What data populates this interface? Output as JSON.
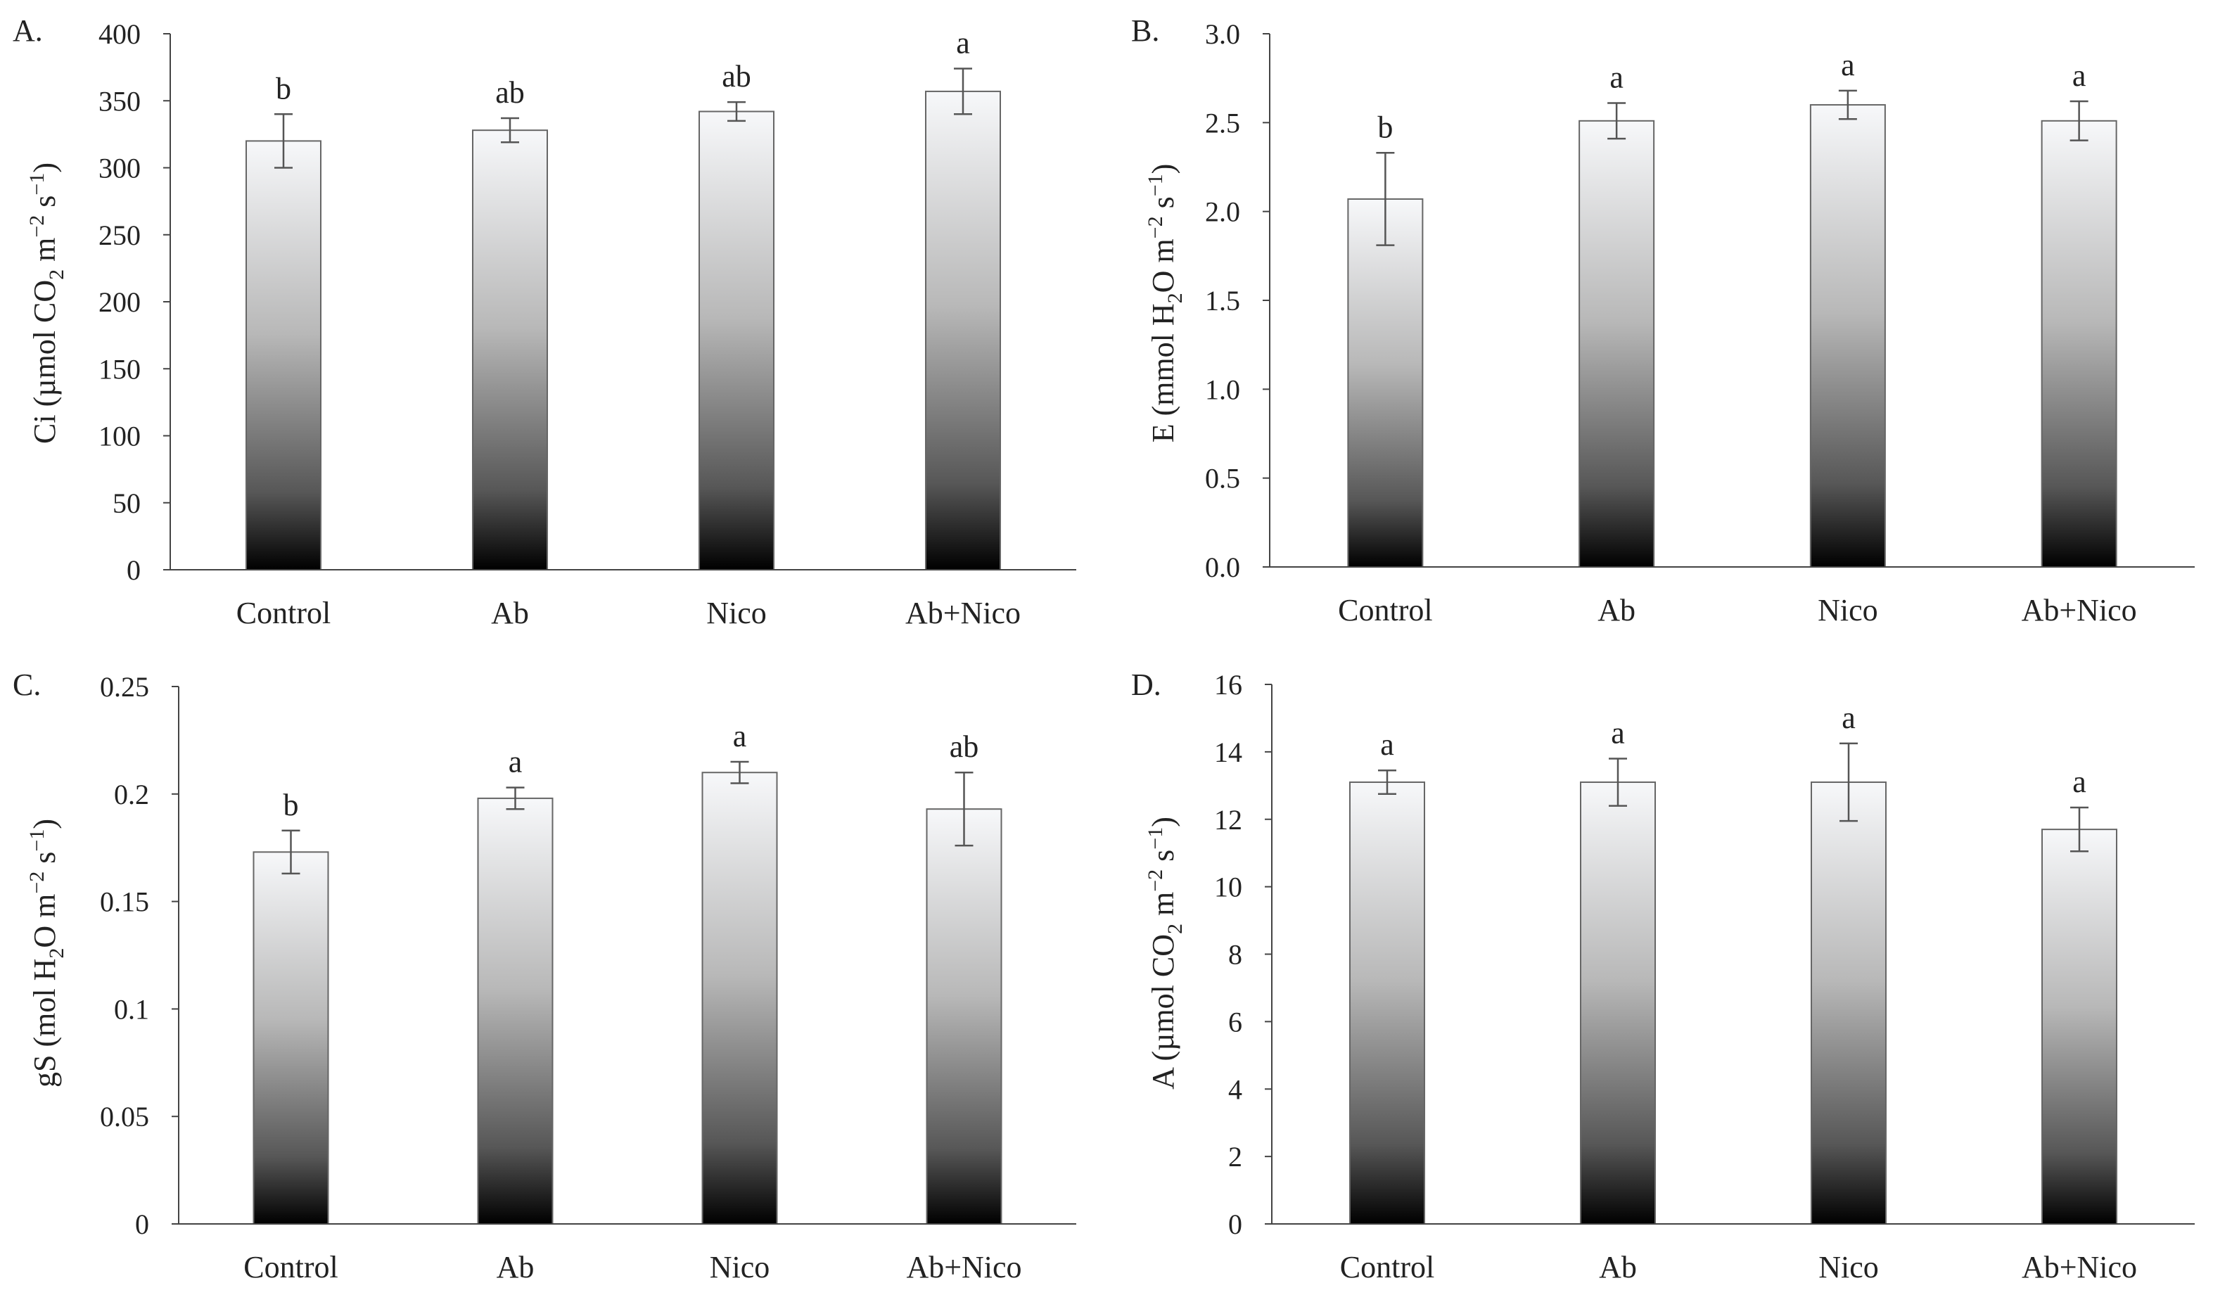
{
  "figure": {
    "description": "",
    "panels_count": 4
  },
  "chart_data": [
    {
      "panel_label": "A.",
      "type": "bar",
      "categories": [
        "Control",
        "Ab",
        "Nico",
        "Ab+Nico"
      ],
      "values": [
        320,
        328,
        342,
        357
      ],
      "errors": [
        20,
        9,
        7,
        17
      ],
      "significance": [
        "b",
        "ab",
        "ab",
        "a"
      ],
      "ylabel": {
        "main": "Ci (µmol CO",
        "sub": "2",
        "mid": " m",
        "sup1": "−2",
        "mid2": " s",
        "sup2": "−1",
        "end": ")"
      },
      "ylim": [
        0,
        400
      ],
      "yticks": [
        "0",
        "50",
        "100",
        "150",
        "200",
        "250",
        "300",
        "350",
        "400"
      ],
      "ytick_values": [
        0,
        50,
        100,
        150,
        200,
        250,
        300,
        350,
        400
      ]
    },
    {
      "panel_label": "B.",
      "type": "bar",
      "categories": [
        "Control",
        "Ab",
        "Nico",
        "Ab+Nico"
      ],
      "values": [
        2.07,
        2.51,
        2.6,
        2.51
      ],
      "errors": [
        0.26,
        0.1,
        0.08,
        0.11
      ],
      "significance": [
        "b",
        "a",
        "a",
        "a"
      ],
      "ylabel": {
        "main": "E (mmol H",
        "sub": "2",
        "mid": "O m",
        "sup1": "−2",
        "mid2": " s",
        "sup2": "−1",
        "end": ")"
      },
      "ylim": [
        0,
        3.0
      ],
      "yticks": [
        "0.0",
        "0.5",
        "1.0",
        "1.5",
        "2.0",
        "2.5",
        "3.0"
      ],
      "ytick_values": [
        0,
        0.5,
        1.0,
        1.5,
        2.0,
        2.5,
        3.0
      ]
    },
    {
      "panel_label": "C.",
      "type": "bar",
      "categories": [
        "Control",
        "Ab",
        "Nico",
        "Ab+Nico"
      ],
      "values": [
        0.173,
        0.198,
        0.21,
        0.193
      ],
      "errors": [
        0.01,
        0.005,
        0.005,
        0.017
      ],
      "significance": [
        "b",
        "a",
        "a",
        "ab"
      ],
      "ylabel": {
        "main": "gS (mol H",
        "sub": "2",
        "mid": "O m",
        "sup1": "−2",
        "mid2": " s",
        "sup2": "−1",
        "end": ")"
      },
      "ylim": [
        0,
        0.25
      ],
      "yticks": [
        "0",
        "0.05",
        "0.1",
        "0.15",
        "0.2",
        "0.25"
      ],
      "ytick_values": [
        0,
        0.05,
        0.1,
        0.15,
        0.2,
        0.25
      ]
    },
    {
      "panel_label": "D.",
      "type": "bar",
      "categories": [
        "Control",
        "Ab",
        "Nico",
        "Ab+Nico"
      ],
      "values": [
        13.1,
        13.1,
        13.1,
        11.7
      ],
      "errors": [
        0.35,
        0.7,
        1.15,
        0.65
      ],
      "significance": [
        "a",
        "a",
        "a",
        "a"
      ],
      "ylabel": {
        "main": "A (µmol CO",
        "sub": "2",
        "mid": " m",
        "sup1": "−2",
        "mid2": " s",
        "sup2": "−1",
        "end": ")"
      },
      "ylim": [
        0,
        16
      ],
      "yticks": [
        "0",
        "2",
        "4",
        "6",
        "8",
        "10",
        "12",
        "14",
        "16"
      ],
      "ytick_values": [
        0,
        2,
        4,
        6,
        8,
        10,
        12,
        14,
        16
      ]
    }
  ]
}
